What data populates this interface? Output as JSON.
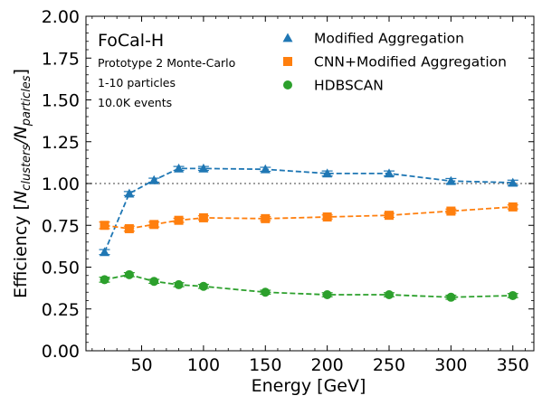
{
  "chart_data": {
    "type": "line",
    "title": "",
    "xlabel": "Energy [GeV]",
    "ylabel_prefix": "Efficiency [",
    "ylabel_main": "N",
    "ylabel_sub1": "clusters",
    "ylabel_slash": "/",
    "ylabel_main2": "N",
    "ylabel_sub2": "particles",
    "ylabel_suffix": "]",
    "xlim": [
      5,
      367
    ],
    "ylim": [
      0,
      2
    ],
    "xticks": [
      50,
      100,
      150,
      200,
      250,
      300,
      350
    ],
    "yticks": [
      0.0,
      0.25,
      0.5,
      0.75,
      1.0,
      1.25,
      1.5,
      1.75,
      2.0
    ],
    "ytick_labels": [
      "0.00",
      "0.25",
      "0.50",
      "0.75",
      "1.00",
      "1.25",
      "1.50",
      "1.75",
      "2.00"
    ],
    "xtick_labels": [
      "50",
      "100",
      "150",
      "200",
      "250",
      "300",
      "350"
    ],
    "reference_line": 1.0,
    "annotations": {
      "title": "FoCal-H",
      "line1": "Prototype 2 Monte-Carlo",
      "line2": "1-10 particles",
      "line3": "10.0K events"
    },
    "legend_position": "top-right",
    "x": [
      20,
      40,
      60,
      80,
      100,
      150,
      200,
      250,
      300,
      350
    ],
    "series": [
      {
        "name": "Modified Aggregation",
        "color": "#1f77b4",
        "marker": "triangle",
        "values": [
          0.59,
          0.94,
          1.02,
          1.09,
          1.09,
          1.085,
          1.06,
          1.06,
          1.015,
          1.005
        ],
        "errors": [
          0.015,
          0.012,
          0.012,
          0.012,
          0.012,
          0.012,
          0.015,
          0.015,
          0.015,
          0.015
        ]
      },
      {
        "name": "CNN+Modified Aggregation",
        "color": "#ff7f0e",
        "marker": "square",
        "values": [
          0.75,
          0.73,
          0.755,
          0.78,
          0.795,
          0.79,
          0.8,
          0.81,
          0.835,
          0.86
        ],
        "errors": [
          0.02,
          0.015,
          0.015,
          0.012,
          0.012,
          0.012,
          0.012,
          0.012,
          0.012,
          0.012
        ]
      },
      {
        "name": "HDBSCAN",
        "color": "#2ca02c",
        "marker": "circle",
        "values": [
          0.425,
          0.455,
          0.415,
          0.395,
          0.385,
          0.35,
          0.335,
          0.335,
          0.32,
          0.33
        ],
        "errors": [
          0.015,
          0.012,
          0.012,
          0.012,
          0.012,
          0.012,
          0.012,
          0.012,
          0.012,
          0.012
        ]
      }
    ]
  }
}
